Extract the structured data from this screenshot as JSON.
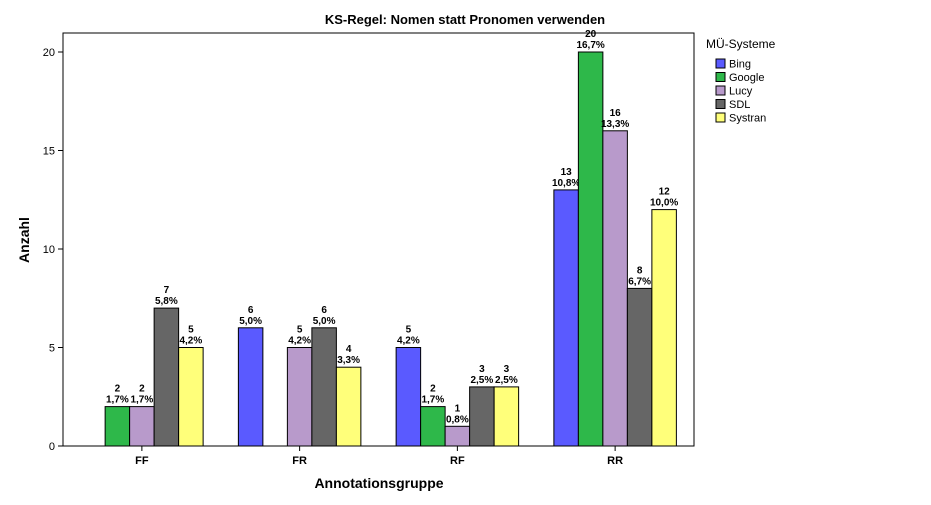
{
  "chart_data": {
    "type": "bar",
    "title": "KS-Regel: Nomen statt Pronomen verwenden",
    "xlabel": "Annotationsgruppe",
    "ylabel": "Anzahl",
    "ylim": [
      0,
      20
    ],
    "yticks": [
      0,
      5,
      10,
      15,
      20
    ],
    "grid": false,
    "legend_title": "MÜ-Systeme",
    "legend_position": "right",
    "categories": [
      "FF",
      "FR",
      "RF",
      "RR"
    ],
    "series": [
      {
        "name": "Bing",
        "color": "#5a5aff",
        "values": [
          0,
          6,
          5,
          13
        ],
        "percent": [
          "",
          "5,0%",
          "4,2%",
          "10,8%"
        ]
      },
      {
        "name": "Google",
        "color": "#2eb84a",
        "values": [
          2,
          0,
          2,
          20
        ],
        "percent": [
          "1,7%",
          "",
          "1,7%",
          "16,7%"
        ]
      },
      {
        "name": "Lucy",
        "color": "#b89acb",
        "values": [
          2,
          5,
          1,
          16
        ],
        "percent": [
          "1,7%",
          "4,2%",
          "0,8%",
          "13,3%"
        ]
      },
      {
        "name": "SDL",
        "color": "#666666",
        "values": [
          7,
          6,
          3,
          8
        ],
        "percent": [
          "5,8%",
          "5,0%",
          "2,5%",
          "6,7%"
        ]
      },
      {
        "name": "Systran",
        "color": "#ffff7a",
        "values": [
          5,
          4,
          3,
          12
        ],
        "percent": [
          "4,2%",
          "3,3%",
          "2,5%",
          "10,0%"
        ]
      }
    ]
  }
}
